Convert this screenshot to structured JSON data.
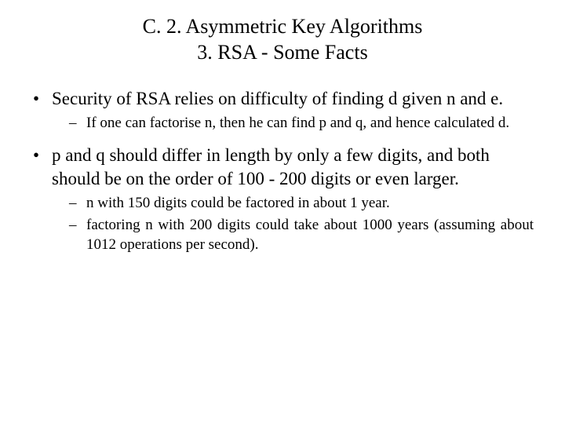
{
  "title": {
    "line1": "C. 2. Asymmetric Key Algorithms",
    "line2": "3. RSA - Some Facts"
  },
  "bullets": [
    {
      "text": "Security of RSA relies on difficulty of finding d given n and e.",
      "sub": [
        "If one can factorise n, then he can find p and q, and hence calculated d."
      ]
    },
    {
      "text": "p and q should differ in length by only a few digits, and both should be on the order of 100 - 200 digits or even larger.",
      "sub": [
        "n with 150 digits could be factored in about 1 year.",
        "factoring n with 200 digits could take about 1000 years (assuming about 1012 operations per second)."
      ]
    }
  ],
  "style": {
    "background": "#ffffff",
    "text_color": "#000000",
    "title_fontsize": 26,
    "lvl1_fontsize": 23,
    "lvl2_fontsize": 19,
    "font_family": "Times New Roman"
  }
}
